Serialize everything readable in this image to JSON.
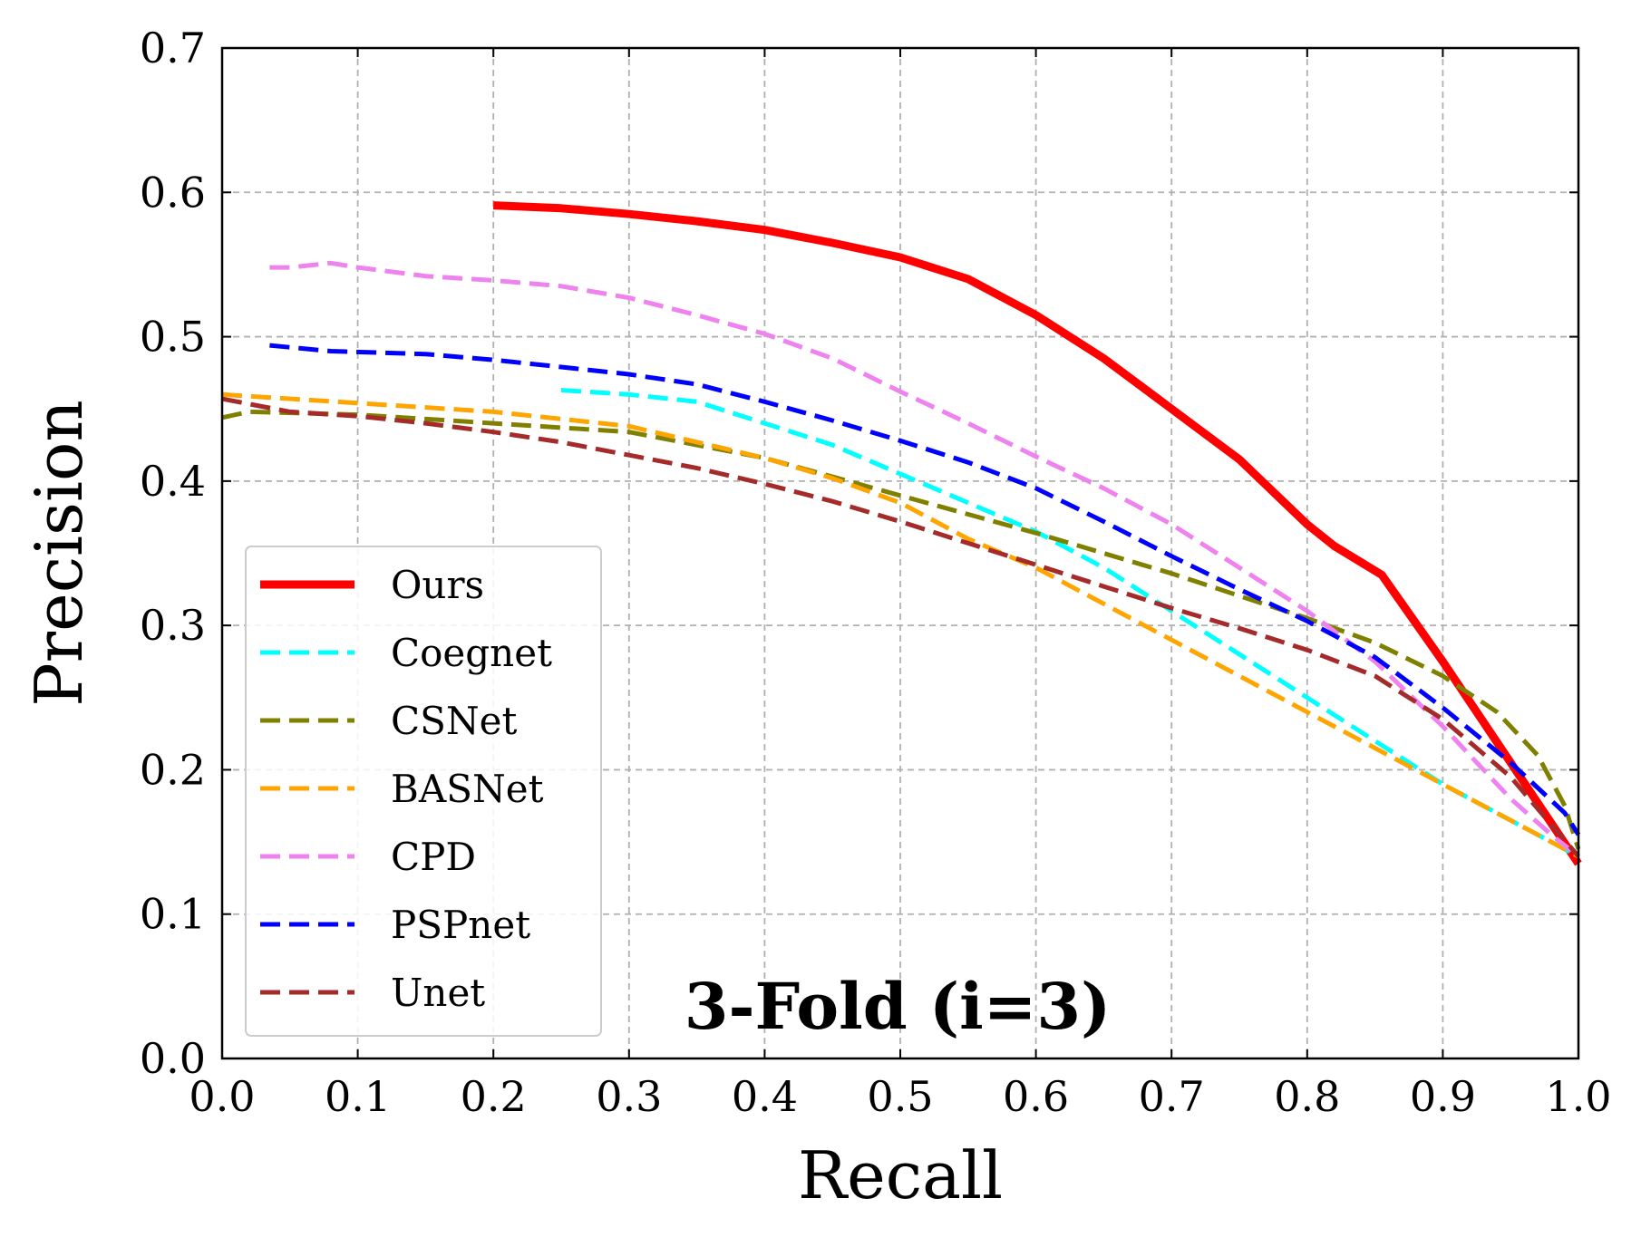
{
  "chart_data": {
    "type": "line",
    "xlabel": "Recall",
    "ylabel": "Precision",
    "xlim": [
      0.0,
      1.0
    ],
    "ylim": [
      0.0,
      0.7
    ],
    "xticks": [
      0.0,
      0.1,
      0.2,
      0.3,
      0.4,
      0.5,
      0.6,
      0.7,
      0.8,
      0.9,
      1.0
    ],
    "yticks": [
      0.0,
      0.1,
      0.2,
      0.3,
      0.4,
      0.5,
      0.6,
      0.7
    ],
    "xtick_labels": [
      "0.0",
      "0.1",
      "0.2",
      "0.3",
      "0.4",
      "0.5",
      "0.6",
      "0.7",
      "0.8",
      "0.9",
      "1.0"
    ],
    "ytick_labels": [
      "0.0",
      "0.1",
      "0.2",
      "0.3",
      "0.4",
      "0.5",
      "0.6",
      "0.7"
    ],
    "grid": true,
    "legend_position": "lower-left",
    "annotation": "3-Fold (i=3)",
    "series": [
      {
        "name": "Ours",
        "color": "#ff0000",
        "style": "solid",
        "points": [
          [
            0.2,
            0.591
          ],
          [
            0.25,
            0.589
          ],
          [
            0.3,
            0.585
          ],
          [
            0.35,
            0.58
          ],
          [
            0.4,
            0.574
          ],
          [
            0.45,
            0.565
          ],
          [
            0.5,
            0.555
          ],
          [
            0.55,
            0.54
          ],
          [
            0.6,
            0.515
          ],
          [
            0.65,
            0.485
          ],
          [
            0.7,
            0.45
          ],
          [
            0.75,
            0.415
          ],
          [
            0.8,
            0.37
          ],
          [
            0.82,
            0.355
          ],
          [
            0.855,
            0.335
          ],
          [
            0.9,
            0.275
          ],
          [
            0.95,
            0.205
          ],
          [
            1.0,
            0.135
          ]
        ]
      },
      {
        "name": "Coegnet",
        "color": "#00ffff",
        "style": "dashed",
        "points": [
          [
            0.25,
            0.463
          ],
          [
            0.3,
            0.46
          ],
          [
            0.35,
            0.455
          ],
          [
            0.4,
            0.44
          ],
          [
            0.45,
            0.425
          ],
          [
            0.5,
            0.405
          ],
          [
            0.55,
            0.385
          ],
          [
            0.6,
            0.365
          ],
          [
            0.65,
            0.34
          ],
          [
            0.7,
            0.31
          ],
          [
            0.75,
            0.28
          ],
          [
            0.8,
            0.25
          ],
          [
            0.85,
            0.22
          ],
          [
            0.9,
            0.19
          ],
          [
            0.95,
            0.165
          ],
          [
            1.0,
            0.14
          ]
        ]
      },
      {
        "name": "CSNet",
        "color": "#808000",
        "style": "dashed",
        "points": [
          [
            0.0,
            0.444
          ],
          [
            0.02,
            0.448
          ],
          [
            0.1,
            0.446
          ],
          [
            0.2,
            0.44
          ],
          [
            0.3,
            0.434
          ],
          [
            0.4,
            0.416
          ],
          [
            0.5,
            0.39
          ],
          [
            0.6,
            0.364
          ],
          [
            0.7,
            0.336
          ],
          [
            0.8,
            0.305
          ],
          [
            0.85,
            0.288
          ],
          [
            0.9,
            0.265
          ],
          [
            0.94,
            0.24
          ],
          [
            0.97,
            0.21
          ],
          [
            0.99,
            0.175
          ],
          [
            1.0,
            0.145
          ]
        ]
      },
      {
        "name": "BASNet",
        "color": "#ffa500",
        "style": "dashed",
        "points": [
          [
            0.0,
            0.46
          ],
          [
            0.1,
            0.454
          ],
          [
            0.2,
            0.448
          ],
          [
            0.3,
            0.438
          ],
          [
            0.4,
            0.416
          ],
          [
            0.45,
            0.402
          ],
          [
            0.5,
            0.385
          ],
          [
            0.55,
            0.36
          ],
          [
            0.6,
            0.34
          ],
          [
            0.65,
            0.315
          ],
          [
            0.7,
            0.29
          ],
          [
            0.75,
            0.265
          ],
          [
            0.8,
            0.24
          ],
          [
            0.85,
            0.215
          ],
          [
            0.9,
            0.19
          ],
          [
            0.95,
            0.165
          ],
          [
            1.0,
            0.14
          ]
        ]
      },
      {
        "name": "CPD",
        "color": "#ee82ee",
        "style": "dashed",
        "points": [
          [
            0.035,
            0.548
          ],
          [
            0.05,
            0.548
          ],
          [
            0.08,
            0.551
          ],
          [
            0.1,
            0.548
          ],
          [
            0.15,
            0.542
          ],
          [
            0.2,
            0.539
          ],
          [
            0.25,
            0.535
          ],
          [
            0.3,
            0.527
          ],
          [
            0.35,
            0.515
          ],
          [
            0.4,
            0.502
          ],
          [
            0.45,
            0.485
          ],
          [
            0.5,
            0.462
          ],
          [
            0.55,
            0.44
          ],
          [
            0.6,
            0.417
          ],
          [
            0.65,
            0.395
          ],
          [
            0.7,
            0.37
          ],
          [
            0.75,
            0.34
          ],
          [
            0.8,
            0.31
          ],
          [
            0.85,
            0.275
          ],
          [
            0.9,
            0.23
          ],
          [
            0.95,
            0.18
          ],
          [
            0.98,
            0.155
          ],
          [
            1.0,
            0.14
          ]
        ]
      },
      {
        "name": "PSPnet",
        "color": "#0000ff",
        "style": "dashed",
        "points": [
          [
            0.035,
            0.494
          ],
          [
            0.08,
            0.49
          ],
          [
            0.15,
            0.488
          ],
          [
            0.2,
            0.484
          ],
          [
            0.25,
            0.479
          ],
          [
            0.3,
            0.474
          ],
          [
            0.35,
            0.467
          ],
          [
            0.4,
            0.455
          ],
          [
            0.45,
            0.442
          ],
          [
            0.5,
            0.428
          ],
          [
            0.55,
            0.413
          ],
          [
            0.6,
            0.395
          ],
          [
            0.65,
            0.372
          ],
          [
            0.7,
            0.348
          ],
          [
            0.75,
            0.325
          ],
          [
            0.8,
            0.303
          ],
          [
            0.85,
            0.278
          ],
          [
            0.9,
            0.243
          ],
          [
            0.95,
            0.205
          ],
          [
            0.99,
            0.17
          ],
          [
            1.0,
            0.155
          ]
        ]
      },
      {
        "name": "Unet",
        "color": "#a52a2a",
        "style": "dashed",
        "points": [
          [
            0.0,
            0.457
          ],
          [
            0.05,
            0.448
          ],
          [
            0.1,
            0.445
          ],
          [
            0.15,
            0.44
          ],
          [
            0.2,
            0.434
          ],
          [
            0.25,
            0.427
          ],
          [
            0.3,
            0.418
          ],
          [
            0.35,
            0.409
          ],
          [
            0.4,
            0.398
          ],
          [
            0.45,
            0.386
          ],
          [
            0.5,
            0.372
          ],
          [
            0.55,
            0.357
          ],
          [
            0.6,
            0.342
          ],
          [
            0.65,
            0.327
          ],
          [
            0.7,
            0.312
          ],
          [
            0.75,
            0.298
          ],
          [
            0.8,
            0.283
          ],
          [
            0.85,
            0.265
          ],
          [
            0.9,
            0.235
          ],
          [
            0.95,
            0.195
          ],
          [
            1.0,
            0.14
          ]
        ]
      }
    ]
  }
}
